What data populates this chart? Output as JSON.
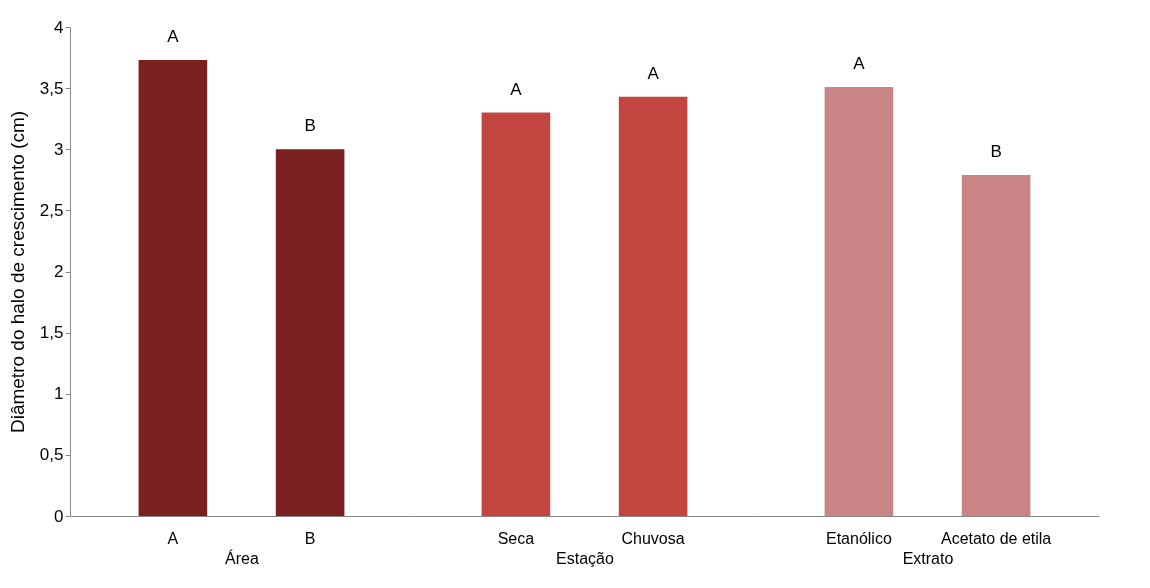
{
  "chart_data": {
    "type": "bar",
    "ylabel": "Diâmetro do halo de crescimento (cm)",
    "categories": [
      "A",
      "B",
      "Seca",
      "Chuvosa",
      "Etanólico",
      "Acetato de etila"
    ],
    "values": [
      3.73,
      3.0,
      3.3,
      3.43,
      3.51,
      2.79
    ],
    "colors": [
      "#7a2020",
      "#7a2020",
      "#c2463f",
      "#c2463f",
      "#c98585",
      "#c98585"
    ],
    "value_labels": [
      "A",
      "B",
      "A",
      "A",
      "A",
      "B"
    ],
    "annotations": [
      "Área",
      "Estação",
      "Extrato"
    ],
    "ylim": [
      0,
      4
    ],
    "yticks": [
      0,
      {
        "value": 0.5,
        "label": "0,5"
      },
      1,
      {
        "value": 1.5,
        "label": "1,5"
      },
      2,
      {
        "value": 2.5,
        "label": "2,5"
      },
      3,
      {
        "value": 3.5,
        "label": "3,5"
      },
      4
    ],
    "grid": false
  }
}
